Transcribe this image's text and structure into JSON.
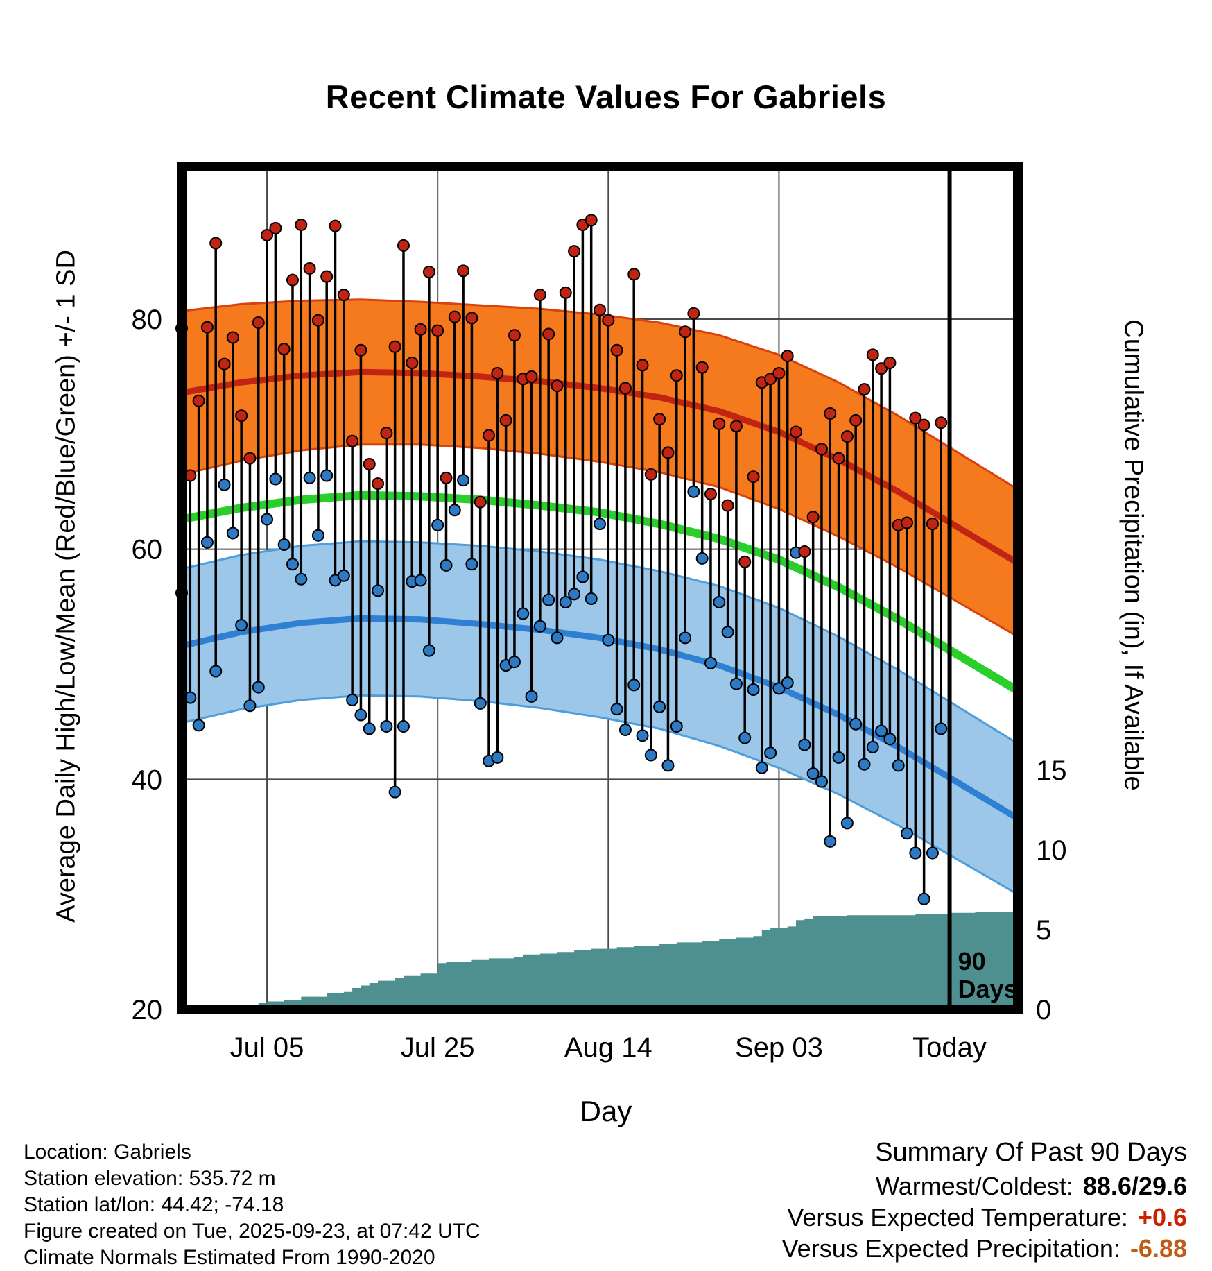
{
  "title": "Recent Climate Values For Gabriels",
  "annotation_90days": [
    "90",
    "Days"
  ],
  "footer": {
    "lines": [
      "Location: Gabriels",
      "Station elevation: 535.72 m",
      "Station lat/lon: 44.42; -74.18",
      "Figure created on Tue, 2025-09-23, at 07:42 UTC",
      "Climate Normals Estimated From 1990-2020"
    ]
  },
  "summary": {
    "title": "Summary Of Past 90 Days",
    "rows": [
      {
        "label": "Warmest/Coldest:",
        "value": "88.6/29.6",
        "color": "#000000"
      },
      {
        "label": "Versus Expected Temperature:",
        "value": "+0.6",
        "color": "#CC2200"
      },
      {
        "label": "Versus Expected Precipitation:",
        "value": "-6.88",
        "color": "#C05A14"
      }
    ]
  },
  "colors": {
    "high_band_fill": "#F5791D",
    "high_band_edge": "#D8420E",
    "high_mean_line": "#C22414",
    "low_band_fill": "#9CC7E8",
    "low_band_edge": "#4E9EDC",
    "low_mean_line": "#2F7FD2",
    "mean_line_green": "#2BCF2B",
    "precip_fill": "#4E8F8F",
    "stem": "#000000",
    "high_dot": "#C22414",
    "low_dot": "#2E79C4",
    "grid": "#4A4A4A",
    "border": "#000000",
    "summary_temp_delta": "#CC2200",
    "summary_precip_delta": "#C05A14"
  },
  "chart_data": {
    "type": "line",
    "title": "Recent Climate Values For Gabriels",
    "description": "Daily high/low temperature stems over climate-normal bands (high/low/mean +/- 1 SD) with cumulative precipitation step area on a secondary axis.",
    "x_axis": {
      "label": "Day",
      "domain_days": [
        0,
        98
      ],
      "today_day": 90,
      "ticks": [
        {
          "day": 10,
          "label": "Jul 05"
        },
        {
          "day": 30,
          "label": "Jul 25"
        },
        {
          "day": 50,
          "label": "Aug 14"
        },
        {
          "day": 70,
          "label": "Sep 03"
        },
        {
          "day": 90,
          "label": "Today"
        }
      ]
    },
    "y_axis_left": {
      "label": "Average Daily High/Low/Mean (Red/Blue/Green) +/- 1 SD",
      "ticks": [
        80,
        60,
        40,
        20
      ],
      "range": [
        20,
        93
      ]
    },
    "y_axis_right": {
      "label": "Cumulative Precipitation (in), If Available",
      "ticks": [
        15,
        10,
        5,
        0
      ]
    },
    "normals": {
      "days": [
        0,
        7,
        14,
        21,
        28,
        35,
        42,
        49,
        56,
        63,
        70,
        77,
        84,
        91,
        98
      ],
      "high_upper": [
        80.7,
        81.3,
        81.6,
        81.7,
        81.5,
        81.2,
        80.9,
        80.4,
        79.7,
        78.6,
        76.9,
        74.5,
        71.6,
        68.4,
        65.2
      ],
      "high_mean": [
        73.6,
        74.5,
        75.1,
        75.4,
        75.3,
        75.0,
        74.6,
        74.0,
        73.2,
        72.0,
        70.2,
        67.8,
        65.0,
        61.9,
        58.8
      ],
      "high_lower": [
        66.5,
        67.7,
        68.6,
        69.1,
        69.1,
        68.8,
        68.3,
        67.6,
        66.7,
        65.4,
        63.5,
        61.1,
        58.4,
        55.4,
        52.4
      ],
      "mean": [
        62.6,
        63.6,
        64.3,
        64.7,
        64.6,
        64.3,
        63.8,
        63.2,
        62.2,
        60.9,
        59.1,
        56.7,
        53.9,
        50.8,
        47.7
      ],
      "low_upper": [
        58.3,
        59.5,
        60.3,
        60.7,
        60.6,
        60.3,
        59.8,
        59.1,
        58.1,
        56.8,
        54.9,
        52.4,
        49.5,
        46.3,
        43.1
      ],
      "low_mean": [
        51.6,
        52.8,
        53.6,
        54.0,
        53.9,
        53.5,
        53.0,
        52.3,
        51.3,
        49.9,
        48.0,
        45.6,
        42.8,
        39.7,
        36.6
      ],
      "low_lower": [
        44.9,
        46.1,
        46.9,
        47.3,
        47.2,
        46.8,
        46.2,
        45.4,
        44.4,
        42.9,
        41.0,
        38.7,
        36.0,
        33.0,
        30.0
      ]
    },
    "daily": {
      "start_day": 0,
      "highs": [
        79.2,
        66.4,
        72.9,
        79.3,
        86.6,
        76.1,
        78.4,
        71.6,
        67.9,
        79.7,
        87.3,
        87.9,
        77.4,
        83.4,
        88.2,
        84.4,
        79.9,
        83.7,
        88.1,
        82.1,
        69.4,
        77.3,
        67.4,
        65.7,
        70.1,
        77.6,
        86.4,
        76.2,
        79.1,
        84.1,
        79.0,
        66.2,
        80.2,
        84.2,
        80.1,
        64.1,
        69.9,
        75.3,
        71.2,
        78.6,
        74.8,
        75.0,
        82.1,
        78.7,
        74.2,
        82.3,
        85.9,
        88.2,
        88.6,
        80.8,
        79.9,
        77.3,
        74.0,
        83.9,
        76.0,
        66.5,
        71.3,
        68.4,
        75.1,
        78.9,
        80.5,
        75.8,
        64.8,
        70.9,
        63.8,
        70.7,
        58.9,
        66.3,
        74.5,
        74.8,
        75.3,
        76.8,
        70.2,
        59.8,
        62.8,
        68.7,
        71.8,
        67.9,
        69.8,
        71.2,
        73.9,
        76.9,
        75.7,
        76.2,
        62.1,
        62.3,
        71.4,
        70.8,
        62.2,
        71.0
      ],
      "lows": [
        56.2,
        47.1,
        44.7,
        60.6,
        49.4,
        65.6,
        61.4,
        53.4,
        46.4,
        48.0,
        62.6,
        66.1,
        60.4,
        58.7,
        57.4,
        66.2,
        61.2,
        66.4,
        57.3,
        57.7,
        46.9,
        45.6,
        44.4,
        56.4,
        44.6,
        38.9,
        44.6,
        57.2,
        57.3,
        51.2,
        62.1,
        58.6,
        63.4,
        66.0,
        58.7,
        46.6,
        41.6,
        41.9,
        49.9,
        50.2,
        54.4,
        47.2,
        53.3,
        55.6,
        52.3,
        55.4,
        56.1,
        57.6,
        55.7,
        62.2,
        52.1,
        46.1,
        44.3,
        48.2,
        43.8,
        42.1,
        46.3,
        41.2,
        44.6,
        52.3,
        65.0,
        59.2,
        50.1,
        55.4,
        52.8,
        48.3,
        43.6,
        47.8,
        41.0,
        42.3,
        47.9,
        48.4,
        59.7,
        43.0,
        40.5,
        39.8,
        34.6,
        41.9,
        36.2,
        44.8,
        41.3,
        42.8,
        44.2,
        43.5,
        41.2,
        35.3,
        33.6,
        29.6,
        33.6,
        44.4
      ]
    },
    "precip_cumulative": {
      "units": "in",
      "points": [
        [
          0,
          0
        ],
        [
          6,
          0
        ],
        [
          7,
          0.15
        ],
        [
          9,
          0.4
        ],
        [
          10,
          0.5
        ],
        [
          12,
          0.6
        ],
        [
          14,
          0.8
        ],
        [
          17,
          1.0
        ],
        [
          19,
          1.1
        ],
        [
          20,
          1.35
        ],
        [
          21,
          1.5
        ],
        [
          22,
          1.65
        ],
        [
          23,
          1.8
        ],
        [
          25,
          2.0
        ],
        [
          26,
          2.1
        ],
        [
          28,
          2.25
        ],
        [
          30,
          2.9
        ],
        [
          31,
          3.0
        ],
        [
          34,
          3.1
        ],
        [
          36,
          3.2
        ],
        [
          39,
          3.3
        ],
        [
          40,
          3.45
        ],
        [
          42,
          3.5
        ],
        [
          44,
          3.6
        ],
        [
          46,
          3.7
        ],
        [
          48,
          3.8
        ],
        [
          51,
          3.9
        ],
        [
          53,
          4.0
        ],
        [
          56,
          4.1
        ],
        [
          58,
          4.2
        ],
        [
          61,
          4.3
        ],
        [
          63,
          4.4
        ],
        [
          65,
          4.5
        ],
        [
          67,
          4.6
        ],
        [
          68,
          5.0
        ],
        [
          69,
          5.1
        ],
        [
          71,
          5.2
        ],
        [
          72,
          5.6
        ],
        [
          73,
          5.7
        ],
        [
          74,
          5.85
        ],
        [
          78,
          5.9
        ],
        [
          86,
          6.0
        ],
        [
          90,
          6.05
        ],
        [
          93,
          6.1
        ],
        [
          98,
          6.2
        ]
      ]
    },
    "annotation": {
      "lines": [
        "90",
        "Days"
      ],
      "at_day": 90
    }
  }
}
